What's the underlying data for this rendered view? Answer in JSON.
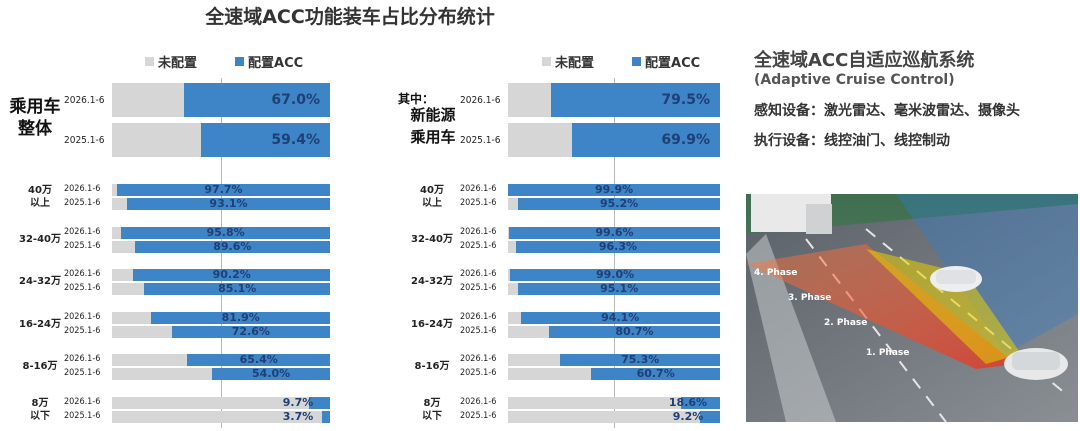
{
  "title": "全速域ACC功能装车占比分布统计",
  "legend": {
    "not_equipped": "未配置",
    "equipped": "配置ACC"
  },
  "colors": {
    "not_equipped": "#d6d6d6",
    "equipped": "#3d85c6",
    "value_text": "#1f3f75"
  },
  "left_panel": {
    "group_label": "乘用车\n整体",
    "overall": [
      {
        "period": "2026.1-6",
        "value": 67.0
      },
      {
        "period": "2025.1-6",
        "value": 59.4
      }
    ],
    "categories": [
      {
        "label": "40万\n以上",
        "rows": [
          {
            "period": "2026.1-6",
            "value": 97.7
          },
          {
            "period": "2025.1-6",
            "value": 93.1
          }
        ]
      },
      {
        "label": "32-40万",
        "rows": [
          {
            "period": "2026.1-6",
            "value": 95.8
          },
          {
            "period": "2025.1-6",
            "value": 89.6
          }
        ]
      },
      {
        "label": "24-32万",
        "rows": [
          {
            "period": "2026.1-6",
            "value": 90.2
          },
          {
            "period": "2025.1-6",
            "value": 85.1
          }
        ]
      },
      {
        "label": "16-24万",
        "rows": [
          {
            "period": "2026.1-6",
            "value": 81.9
          },
          {
            "period": "2025.1-6",
            "value": 72.6
          }
        ]
      },
      {
        "label": "8-16万",
        "rows": [
          {
            "period": "2026.1-6",
            "value": 65.4
          },
          {
            "period": "2025.1-6",
            "value": 54.0
          }
        ]
      },
      {
        "label": "8万\n以下",
        "rows": [
          {
            "period": "2026.1-6",
            "value": 9.7
          },
          {
            "period": "2025.1-6",
            "value": 3.7
          }
        ]
      }
    ]
  },
  "right_panel": {
    "group_prefix": "其中：",
    "group_label": "新能源\n乘用车",
    "overall": [
      {
        "period": "2026.1-6",
        "value": 79.5
      },
      {
        "period": "2025.1-6",
        "value": 69.9
      }
    ],
    "categories": [
      {
        "label": "40万\n以上",
        "rows": [
          {
            "period": "2026.1-6",
            "value": 99.9
          },
          {
            "period": "2025.1-6",
            "value": 95.2
          }
        ]
      },
      {
        "label": "32-40万",
        "rows": [
          {
            "period": "2026.1-6",
            "value": 99.6
          },
          {
            "period": "2025.1-6",
            "value": 96.3
          }
        ]
      },
      {
        "label": "24-32万",
        "rows": [
          {
            "period": "2026.1-6",
            "value": 99.0
          },
          {
            "period": "2025.1-6",
            "value": 95.1
          }
        ]
      },
      {
        "label": "16-24万",
        "rows": [
          {
            "period": "2026.1-6",
            "value": 94.1
          },
          {
            "period": "2025.1-6",
            "value": 80.7
          }
        ]
      },
      {
        "label": "8-16万",
        "rows": [
          {
            "period": "2026.1-6",
            "value": 75.3
          },
          {
            "period": "2025.1-6",
            "value": 60.7
          }
        ]
      },
      {
        "label": "8万\n以下",
        "rows": [
          {
            "period": "2026.1-6",
            "value": 18.6
          },
          {
            "period": "2025.1-6",
            "value": 9.2
          }
        ]
      }
    ]
  },
  "info": {
    "title": "全速域ACC自适应巡航系统",
    "subtitle": "(Adaptive Cruise Control)",
    "sensors": "感知设备：激光雷达、毫米波雷达、摄像头",
    "actuators": "执行设备：线控油门、线控制动"
  },
  "phases": [
    "4. Phase",
    "3. Phase",
    "2. Phase",
    "1. Phase"
  ],
  "chart_data": [
    {
      "type": "bar",
      "title": "全速域ACC功能装车占比分布统计",
      "group": "乘用车整体",
      "categories": [
        "整体",
        "40万以上",
        "32-40万",
        "24-32万",
        "16-24万",
        "8-16万",
        "8万以下"
      ],
      "series": [
        {
          "name": "2026.1-6",
          "values": [
            67.0,
            97.7,
            95.8,
            90.2,
            81.9,
            65.4,
            9.7
          ]
        },
        {
          "name": "2025.1-6",
          "values": [
            59.4,
            93.1,
            89.6,
            85.1,
            72.6,
            54.0,
            3.7
          ]
        }
      ],
      "stack": [
        "未配置",
        "配置ACC"
      ],
      "xlim": [
        0,
        100
      ]
    },
    {
      "type": "bar",
      "group": "新能源乘用车",
      "categories": [
        "整体",
        "40万以上",
        "32-40万",
        "24-32万",
        "16-24万",
        "8-16万",
        "8万以下"
      ],
      "series": [
        {
          "name": "2026.1-6",
          "values": [
            79.5,
            99.9,
            99.6,
            99.0,
            94.1,
            75.3,
            18.6
          ]
        },
        {
          "name": "2025.1-6",
          "values": [
            69.9,
            95.2,
            96.3,
            95.1,
            80.7,
            60.7,
            9.2
          ]
        }
      ],
      "stack": [
        "未配置",
        "配置ACC"
      ],
      "xlim": [
        0,
        100
      ]
    }
  ]
}
